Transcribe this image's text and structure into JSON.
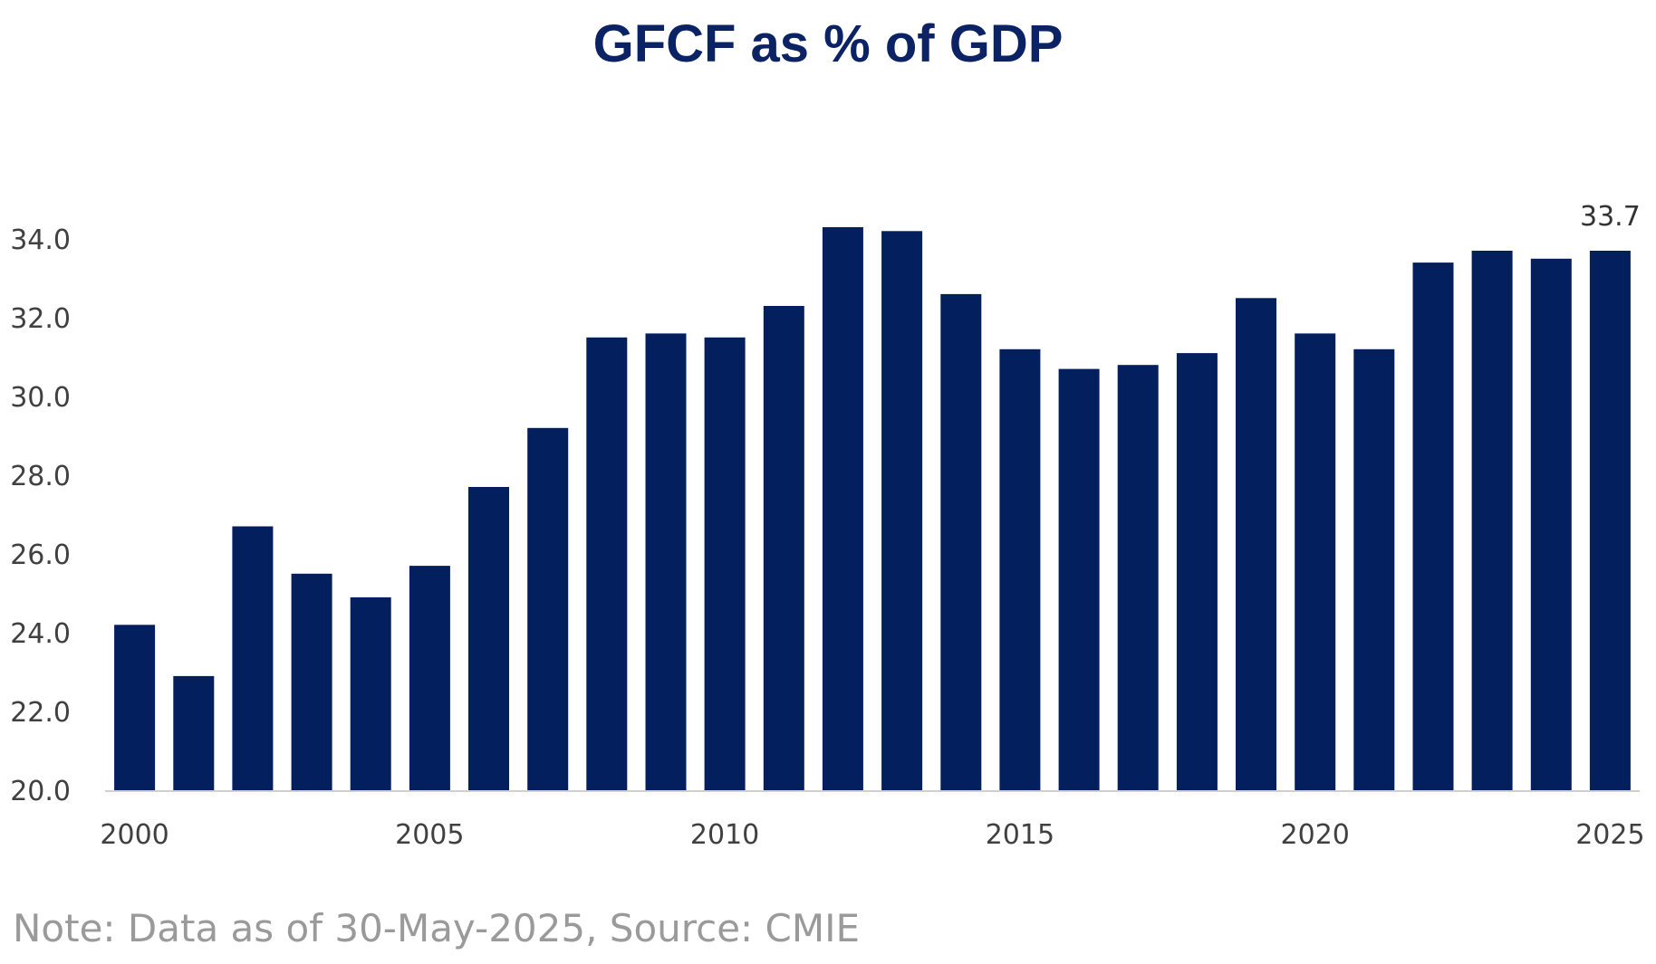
{
  "chart_data": {
    "type": "bar",
    "title": "GFCF as % of GDP",
    "xlabel": "",
    "ylabel": "",
    "categories": [
      "2000",
      "2001",
      "2002",
      "2003",
      "2004",
      "2005",
      "2006",
      "2007",
      "2008",
      "2009",
      "2010",
      "2011",
      "2012",
      "2013",
      "2014",
      "2015",
      "2016",
      "2017",
      "2018",
      "2019",
      "2020",
      "2021",
      "2022",
      "2023",
      "2024",
      "2025"
    ],
    "values": [
      24.2,
      22.9,
      26.7,
      25.5,
      24.9,
      25.7,
      27.7,
      29.2,
      31.5,
      31.6,
      31.5,
      32.3,
      34.3,
      34.2,
      32.6,
      31.2,
      30.7,
      30.8,
      31.1,
      32.5,
      31.6,
      31.2,
      33.4,
      33.7,
      33.5,
      33.7
    ],
    "ylim": [
      20,
      34
    ],
    "yticks": [
      "20.0",
      "22.0",
      "24.0",
      "26.0",
      "28.0",
      "30.0",
      "32.0",
      "34.0"
    ],
    "xtick_labels": [
      "2000",
      "2005",
      "2010",
      "2015",
      "2020",
      "2025"
    ],
    "data_labels": [
      {
        "category": "2025",
        "text": "33.7"
      }
    ],
    "bar_color": "#041f5e",
    "grid": false,
    "legend": "none"
  },
  "note": "Note: Data as of 30-May-2025, Source: CMIE"
}
